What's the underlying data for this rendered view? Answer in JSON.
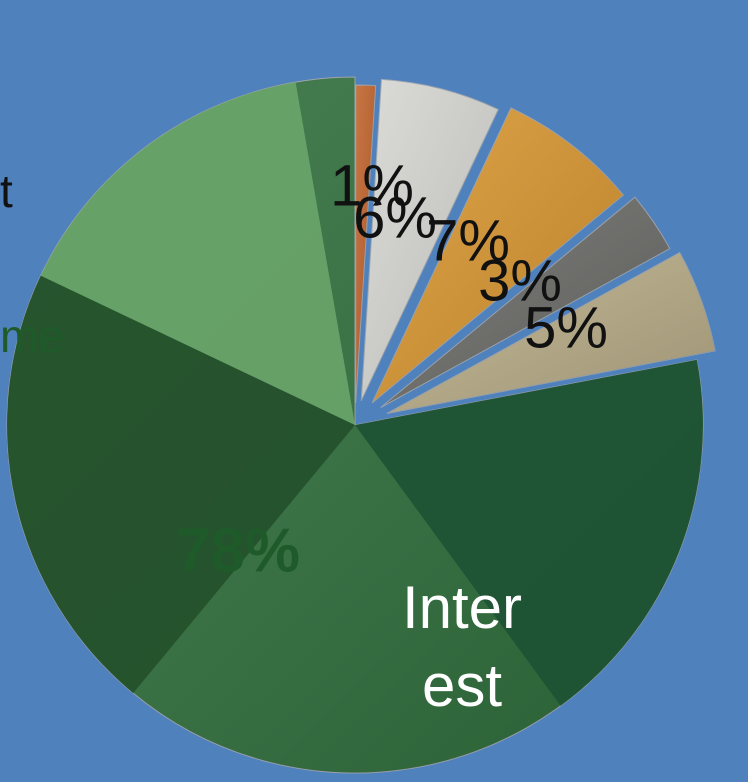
{
  "chart_data": {
    "type": "pie",
    "values": [
      1,
      6,
      7,
      3,
      5,
      78
    ],
    "value_labels": [
      "1%",
      "6%",
      "7%",
      "3%",
      "5%",
      "78%"
    ],
    "colors": [
      "#c0622a",
      "#d6d6d2",
      "#d9962f",
      "#6b6b68",
      "#b9ad88",
      "#2f6f3c"
    ],
    "annotations": [
      "t",
      "me",
      "Inter",
      "est"
    ]
  }
}
